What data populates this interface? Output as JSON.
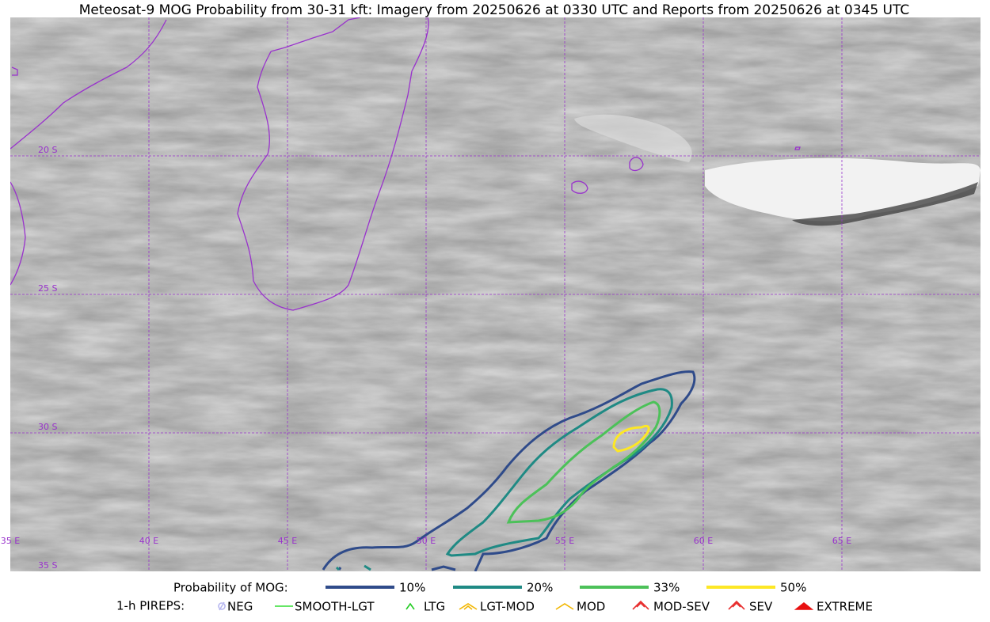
{
  "header": {
    "title": "Meteosat-9 MOG Probability from 30-31 kft: Imagery from 20250626 at 0330 UTC and Reports from 20250626 at 0345 UTC"
  },
  "map": {
    "latitude_labels": [
      "20 S",
      "25 S",
      "30 S",
      "35 S"
    ],
    "longitude_labels": [
      "35 E",
      "40 E",
      "45 E",
      "50 E",
      "55 E",
      "60 E",
      "65 E"
    ]
  },
  "legend": {
    "probability": {
      "label": "Probability of MOG:",
      "items": [
        {
          "label": "10%",
          "color": "#2f4b8a"
        },
        {
          "label": "20%",
          "color": "#1f8a84"
        },
        {
          "label": "33%",
          "color": "#4cc159"
        },
        {
          "label": "50%",
          "color": "#fde725"
        }
      ]
    },
    "pireps": {
      "label": "1-h PIREPS:",
      "items": [
        {
          "label": "NEG",
          "color": "#b8b8f0"
        },
        {
          "label": "SMOOTH-LGT",
          "color": "#33dd33"
        },
        {
          "label": "LTG",
          "color": "#22cc22"
        },
        {
          "label": "LGT-MOD",
          "color": "#f2b600"
        },
        {
          "label": "MOD",
          "color": "#f2b600"
        },
        {
          "label": "MOD-SEV",
          "color": "#e83030"
        },
        {
          "label": "SEV",
          "color": "#e83030"
        },
        {
          "label": "EXTREME",
          "color": "#e81010"
        }
      ]
    }
  }
}
